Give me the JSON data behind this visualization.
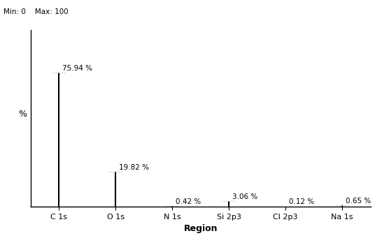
{
  "categories": [
    "C 1s",
    "O 1s",
    "N 1s",
    "Si 2p3",
    "Cl 2p3",
    "Na 1s"
  ],
  "values": [
    75.94,
    19.82,
    0.42,
    3.06,
    0.12,
    0.65
  ],
  "labels": [
    "75.94 %",
    "19.82 %",
    "0.42 %",
    "3.06 %",
    "0.12 %",
    "0.65 %"
  ],
  "xlabel": "Region",
  "ylabel": "%",
  "ylim": [
    0,
    100
  ],
  "min_label": "Min: 0",
  "max_label": "Max: 100",
  "line_color": "#000000",
  "label_fontsize": 7.5,
  "axis_label_fontsize": 9,
  "tick_fontsize": 8,
  "background_color": "#ffffff",
  "dotted_line_color": "#b0b0b0",
  "x_positions": [
    0,
    1,
    2,
    3,
    4,
    5
  ]
}
